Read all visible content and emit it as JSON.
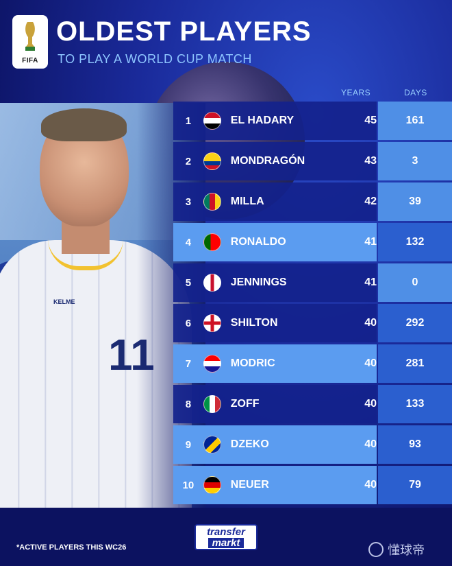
{
  "header": {
    "title": "OLDEST PLAYERS",
    "subtitle": "TO PLAY A WORLD CUP MATCH",
    "logo_text": "FIFA"
  },
  "columns": {
    "years": "YEARS",
    "days": "DAYS"
  },
  "rows": [
    {
      "rank": "1",
      "name": "EL HADARY",
      "years": "45",
      "days": "161",
      "flag": "egypt-flag-icon"
    },
    {
      "rank": "2",
      "name": "MONDRAGÓN",
      "years": "43",
      "days": "3",
      "flag": "colombia-flag-icon"
    },
    {
      "rank": "3",
      "name": "MILLA",
      "years": "42",
      "days": "39",
      "flag": "cameroon-flag-icon"
    },
    {
      "rank": "4",
      "name": "RONALDO",
      "years": "41",
      "days": "132",
      "flag": "portugal-flag-icon"
    },
    {
      "rank": "5",
      "name": "JENNINGS",
      "years": "41",
      "days": "0",
      "flag": "northern-ireland-flag-icon"
    },
    {
      "rank": "6",
      "name": "SHILTON",
      "years": "40",
      "days": "292",
      "flag": "england-flag-icon"
    },
    {
      "rank": "7",
      "name": "MODRIC",
      "years": "40",
      "days": "281",
      "flag": "croatia-flag-icon"
    },
    {
      "rank": "8",
      "name": "ZOFF",
      "years": "40",
      "days": "133",
      "flag": "italy-flag-icon"
    },
    {
      "rank": "9",
      "name": "DZEKO",
      "years": "40",
      "days": "93",
      "flag": "bosnia-flag-icon"
    },
    {
      "rank": "10",
      "name": "NEUER",
      "years": "40",
      "days": "79",
      "flag": "germany-flag-icon"
    }
  ],
  "player": {
    "shirt_number": "11",
    "shirt_brand": "KELME"
  },
  "footer": {
    "note": "*ACTIVE PLAYERS THIS WC26",
    "brand_line1": "transfer",
    "brand_line2": "markt",
    "watermark": "懂球帝"
  },
  "colors": {
    "background": "#0d1466",
    "row_dark": "#14228c",
    "row_light": "#5b9cf0",
    "accent_text": "#9ad0ff"
  }
}
